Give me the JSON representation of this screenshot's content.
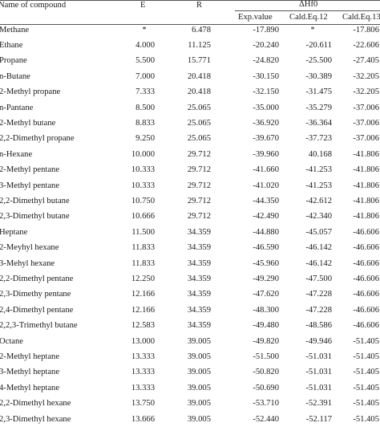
{
  "headers": {
    "name": "Name of compound",
    "e": "E",
    "r": "R",
    "dhf": "ΔHf0",
    "exp": "Exp.value",
    "eq12": "Cald.Eq.12",
    "eq13": "Cald.Eq.13"
  },
  "rows": [
    {
      "name": "Methane",
      "e": "*",
      "r": "6.478",
      "exp": "-17.890",
      "eq12": "*",
      "eq13": "-17.806"
    },
    {
      "name": "Ethane",
      "e": "4.000",
      "r": "11.125",
      "exp": "-20.240",
      "eq12": "-20.611",
      "eq13": "-22.606"
    },
    {
      "name": "Propane",
      "e": "5.500",
      "r": "15.771",
      "exp": "-24.820",
      "eq12": "-25.500",
      "eq13": "-27.405"
    },
    {
      "name": "n-Butane",
      "e": "7.000",
      "r": "20.418",
      "exp": "-30.150",
      "eq12": "-30.389",
      "eq13": "-32.205"
    },
    {
      "name": "2-Methyl propane",
      "e": "7.333",
      "r": "20.418",
      "exp": "-32.150",
      "eq12": "-31.475",
      "eq13": "-32.205"
    },
    {
      "name": "n-Pantane",
      "e": "8.500",
      "r": "25.065",
      "exp": "-35.000",
      "eq12": "-35.279",
      "eq13": "-37.006"
    },
    {
      "name": "2-Methyl butane",
      "e": "8.833",
      "r": "25.065",
      "exp": "-36.920",
      "eq12": "-36.364",
      "eq13": "-37.006"
    },
    {
      "name": "2,2-Dimethyl propane",
      "e": "9.250",
      "r": "25.065",
      "exp": "-39.670",
      "eq12": "-37.723",
      "eq13": "-37.006"
    },
    {
      "name": "n-Hexane",
      "e": "10.000",
      "r": "29.712",
      "exp": "-39.960",
      "eq12": "40.168",
      "eq13": "-41.806"
    },
    {
      "name": "2-Methyl pentane",
      "e": "10.333",
      "r": "29.712",
      "exp": "-41.660",
      "eq12": "-41.253",
      "eq13": "-41.806"
    },
    {
      "name": "3-Methyl pentane",
      "e": "10.333",
      "r": "29.712",
      "exp": "-41.020",
      "eq12": "-41.253",
      "eq13": "-41.806"
    },
    {
      "name": "2,2-Dimethyl butane",
      "e": "10.750",
      "r": "29.712",
      "exp": "-44.350",
      "eq12": "-42.612",
      "eq13": "-41.806"
    },
    {
      "name": "2,3-Dimethyl butane",
      "e": "10.666",
      "r": "29.712",
      "exp": "-42.490",
      "eq12": "-42.340",
      "eq13": "-41.806"
    },
    {
      "name": "Heptane",
      "e": "11.500",
      "r": "34.359",
      "exp": "-44.880",
      "eq12": "-45.057",
      "eq13": "-46.606"
    },
    {
      "name": "2-Meyhyl hexane",
      "e": "11.833",
      "r": "34.359",
      "exp": "-46.590",
      "eq12": "-46.142",
      "eq13": "-46.606"
    },
    {
      "name": "3-Mehyl hexane",
      "e": "11.833",
      "r": "34.359",
      "exp": "-45.960",
      "eq12": "-46.142",
      "eq13": "-46.606"
    },
    {
      "name": "2,2-Dimethyl pentane",
      "e": "12.250",
      "r": "34.359",
      "exp": "-49.290",
      "eq12": "-47.500",
      "eq13": "-46.606"
    },
    {
      "name": "2,3-Dimethy pentane",
      "e": "12.166",
      "r": "34.359",
      "exp": "-47.620",
      "eq12": "-47.228",
      "eq13": "-46.606"
    },
    {
      "name": "2,4-Dimethyl pentane",
      "e": "12.166",
      "r": "34.359",
      "exp": "-48.300",
      "eq12": "-47.228",
      "eq13": "-46.606"
    },
    {
      "name": "2,2,3-Trimethyl butane",
      "e": "12.583",
      "r": "34.359",
      "exp": "-49.480",
      "eq12": "-48.586",
      "eq13": "-46.606"
    },
    {
      "name": "Octane",
      "e": "13.000",
      "r": "39.005",
      "exp": "-49.820",
      "eq12": "-49.946",
      "eq13": "-51.405"
    },
    {
      "name": "2-Methyl heptane",
      "e": "13.333",
      "r": "39.005",
      "exp": "-51.500",
      "eq12": "-51.031",
      "eq13": "-51.405"
    },
    {
      "name": "3-Methyl heptane",
      "e": "13.333",
      "r": "39.005",
      "exp": "-50.820",
      "eq12": "-51.031",
      "eq13": "-51.405"
    },
    {
      "name": "4-Methyl heptane",
      "e": "13.333",
      "r": "39.005",
      "exp": "-50.690",
      "eq12": "-51.031",
      "eq13": "-51.405"
    },
    {
      "name": "2,2-Dimethyl hexane",
      "e": "13.750",
      "r": "39.005",
      "exp": "-53.710",
      "eq12": "-52.391",
      "eq13": "-51.405"
    },
    {
      "name": "2,3-Dimethyl hexane",
      "e": "13.666",
      "r": "39.005",
      "exp": "-52.440",
      "eq12": "-52.117",
      "eq13": "-51.405"
    }
  ]
}
